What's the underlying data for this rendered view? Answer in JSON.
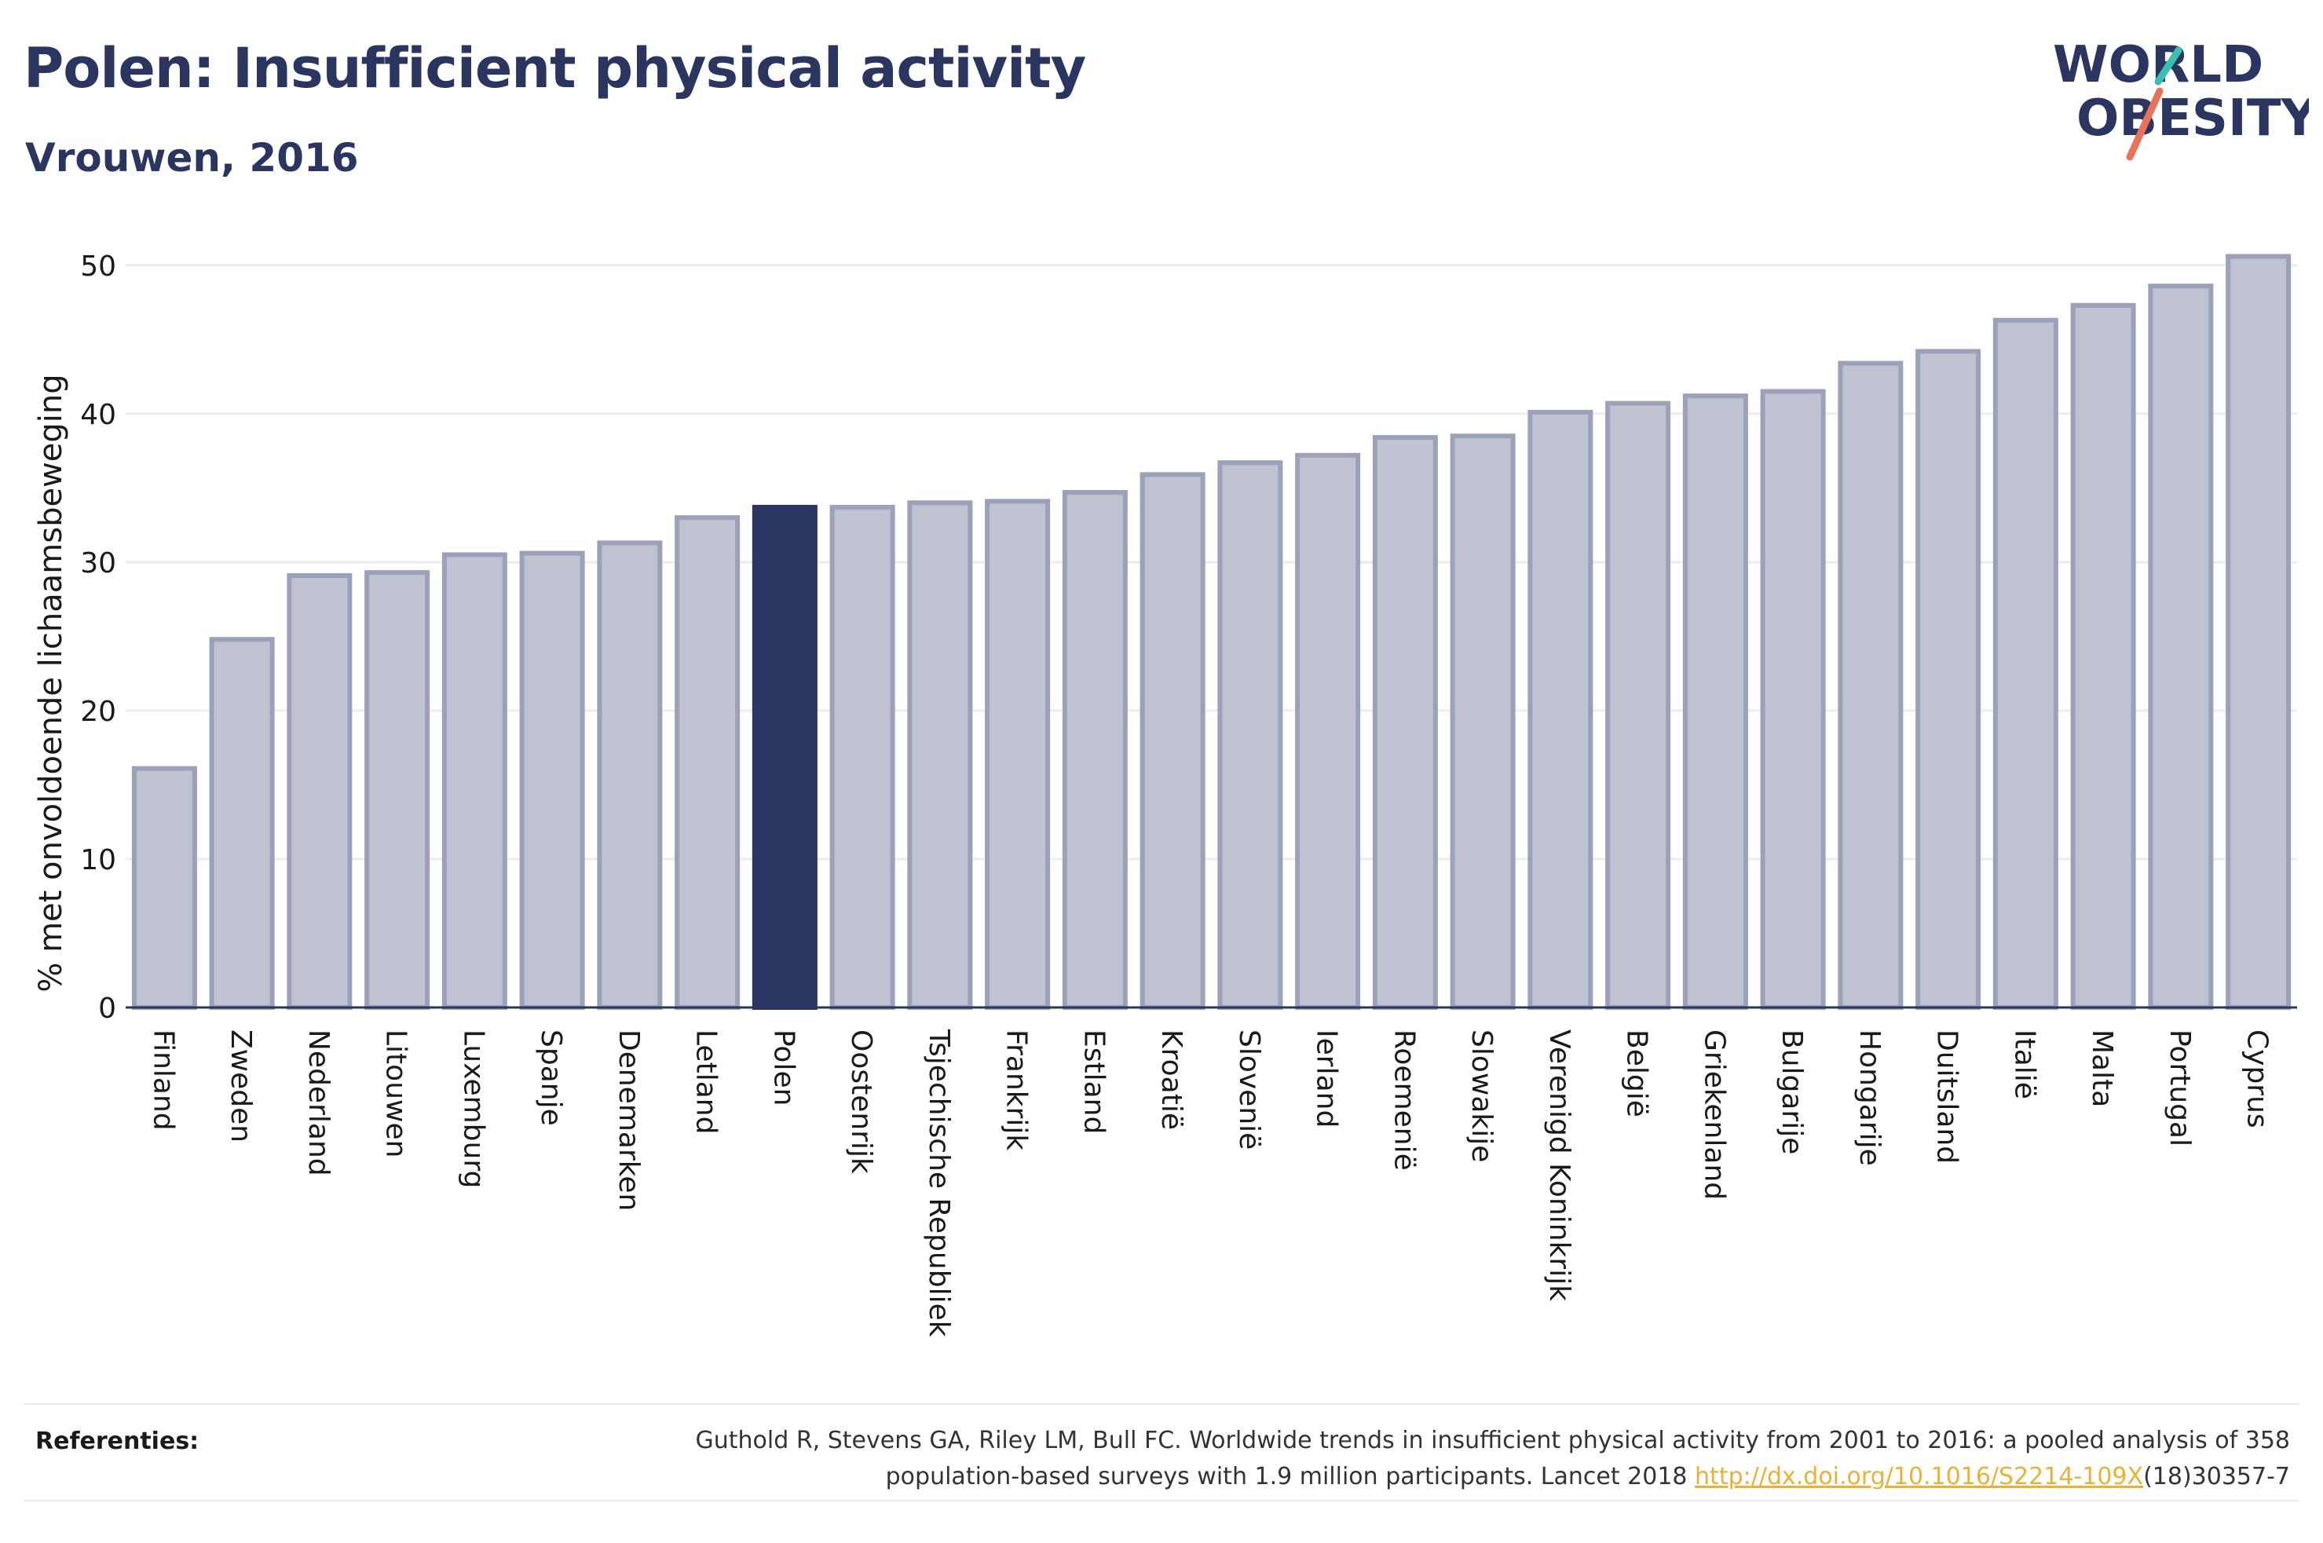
{
  "header": {
    "title": "Polen: Insufficient physical activity",
    "subtitle": "Vrouwen, 2016"
  },
  "logo": {
    "line1": "WORLD",
    "line2": "OBESITY",
    "colors": {
      "text": "#2a3560",
      "slash_teal": "#3bbfb0",
      "slash_coral": "#e8735a"
    }
  },
  "chart_data": {
    "type": "bar",
    "ylabel": "% met onvoldoende lichaamsbeweging",
    "xlabel": "",
    "ylim": [
      0,
      52
    ],
    "yticks": [
      0,
      10,
      20,
      30,
      40,
      50
    ],
    "grid": true,
    "highlight": "Polen",
    "colors": {
      "bar": "#bfc2d0",
      "bar_border": "#9ba1b8",
      "highlight": "#2a3560",
      "grid": "#ececf0"
    },
    "categories": [
      "Finland",
      "Zweden",
      "Nederland",
      "Litouwen",
      "Luxemburg",
      "Spanje",
      "Denemarken",
      "Letland",
      "Polen",
      "Oostenrijk",
      "Tsjechische Republiek",
      "Frankrijk",
      "Estland",
      "Kroatië",
      "Slovenië",
      "Ierland",
      "Roemenië",
      "Slowakije",
      "Verenigd Koninkrijk",
      "België",
      "Griekenland",
      "Bulgarije",
      "Hongarije",
      "Duitsland",
      "Italië",
      "Malta",
      "Portugal",
      "Cyprus"
    ],
    "values": [
      16.1,
      24.8,
      29.1,
      29.3,
      30.5,
      30.6,
      31.3,
      33.0,
      33.7,
      33.7,
      34.0,
      34.1,
      34.7,
      35.9,
      36.7,
      37.2,
      38.4,
      38.5,
      40.1,
      40.7,
      41.2,
      41.5,
      43.4,
      44.2,
      46.3,
      47.3,
      48.6,
      50.6
    ]
  },
  "footer": {
    "ref_label": "Referenties:",
    "ref_text_1": "Guthold R, Stevens GA, Riley LM, Bull FC. Worldwide trends in insufficient physical activity from 2001 to 2016: a pooled analysis of 358",
    "ref_text_2": "population-based surveys with 1.9 million participants. Lancet 2018 ",
    "ref_link": "http://dx.doi.org/10.1016/S2214-109X",
    "ref_text_3": "(18)30357-7"
  }
}
